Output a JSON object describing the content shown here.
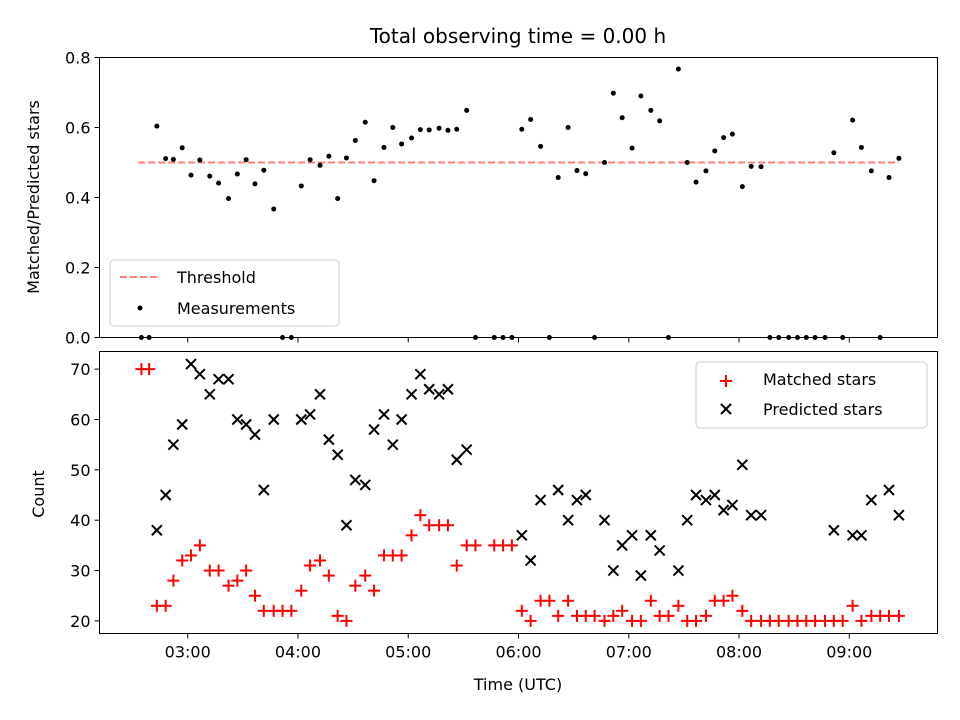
{
  "chart_data": [
    {
      "type": "scatter",
      "title": "Total observing time = 0.00 h",
      "ylabel": "Matched/Predicted stars",
      "xlabel": "",
      "xlim": [
        2.2,
        9.8
      ],
      "ylim": [
        0.0,
        0.8
      ],
      "xticks": [
        3,
        4,
        5,
        6,
        7,
        8,
        9
      ],
      "yticks": [
        0.0,
        0.2,
        0.4,
        0.6,
        0.8
      ],
      "ytick_labels": [
        "0.0",
        "0.2",
        "0.4",
        "0.6",
        "0.8"
      ],
      "legend": {
        "loc": "lower-left",
        "entries": [
          "Threshold",
          "Measurements"
        ]
      },
      "threshold": {
        "name": "Threshold",
        "value": 0.5,
        "x_range": [
          2.55,
          9.45
        ],
        "color": "#ff7f7f",
        "style": "dashed"
      },
      "series": [
        {
          "name": "Measurements",
          "color": "#000000",
          "marker": "dot",
          "points": [
            [
              2.58,
              0.0
            ],
            [
              2.65,
              0.0
            ],
            [
              2.72,
              0.604
            ],
            [
              2.8,
              0.511
            ],
            [
              2.87,
              0.509
            ],
            [
              2.95,
              0.542
            ],
            [
              3.03,
              0.464
            ],
            [
              3.11,
              0.507
            ],
            [
              3.2,
              0.461
            ],
            [
              3.28,
              0.441
            ],
            [
              3.37,
              0.397
            ],
            [
              3.45,
              0.467
            ],
            [
              3.53,
              0.508
            ],
            [
              3.61,
              0.439
            ],
            [
              3.69,
              0.478
            ],
            [
              3.78,
              0.367
            ],
            [
              3.86,
              0.0
            ],
            [
              3.94,
              0.0
            ],
            [
              4.03,
              0.433
            ],
            [
              4.11,
              0.508
            ],
            [
              4.2,
              0.492
            ],
            [
              4.28,
              0.518
            ],
            [
              4.36,
              0.397
            ],
            [
              4.44,
              0.513
            ],
            [
              4.52,
              0.563
            ],
            [
              4.61,
              0.615
            ],
            [
              4.69,
              0.448
            ],
            [
              4.78,
              0.543
            ],
            [
              4.86,
              0.6
            ],
            [
              4.94,
              0.553
            ],
            [
              5.03,
              0.57
            ],
            [
              5.11,
              0.594
            ],
            [
              5.19,
              0.593
            ],
            [
              5.28,
              0.598
            ],
            [
              5.36,
              0.592
            ],
            [
              5.44,
              0.595
            ],
            [
              5.53,
              0.649
            ],
            [
              5.61,
              0.0
            ],
            [
              5.78,
              0.0
            ],
            [
              5.86,
              0.0
            ],
            [
              5.94,
              0.0
            ],
            [
              6.03,
              0.595
            ],
            [
              6.11,
              0.623
            ],
            [
              6.2,
              0.546
            ],
            [
              6.28,
              0.0
            ],
            [
              6.36,
              0.457
            ],
            [
              6.45,
              0.6
            ],
            [
              6.53,
              0.477
            ],
            [
              6.61,
              0.468
            ],
            [
              6.69,
              0.0
            ],
            [
              6.78,
              0.5
            ],
            [
              6.86,
              0.698
            ],
            [
              6.94,
              0.628
            ],
            [
              7.03,
              0.541
            ],
            [
              7.11,
              0.69
            ],
            [
              7.2,
              0.649
            ],
            [
              7.28,
              0.619
            ],
            [
              7.36,
              0.0
            ],
            [
              7.45,
              0.767
            ],
            [
              7.53,
              0.5
            ],
            [
              7.61,
              0.444
            ],
            [
              7.7,
              0.476
            ],
            [
              7.78,
              0.533
            ],
            [
              7.86,
              0.571
            ],
            [
              7.94,
              0.581
            ],
            [
              8.03,
              0.431
            ],
            [
              8.11,
              0.489
            ],
            [
              8.2,
              0.488
            ],
            [
              8.28,
              0.0
            ],
            [
              8.36,
              0.0
            ],
            [
              8.45,
              0.0
            ],
            [
              8.53,
              0.0
            ],
            [
              8.61,
              0.0
            ],
            [
              8.69,
              0.0
            ],
            [
              8.78,
              0.0
            ],
            [
              8.86,
              0.528
            ],
            [
              8.94,
              0.0
            ],
            [
              9.03,
              0.621
            ],
            [
              9.11,
              0.543
            ],
            [
              9.2,
              0.476
            ],
            [
              9.28,
              0.0
            ],
            [
              9.36,
              0.457
            ],
            [
              9.45,
              0.512
            ]
          ]
        }
      ]
    },
    {
      "type": "scatter",
      "title": "",
      "ylabel": "Count",
      "xlabel": "Time (UTC)",
      "xlim": [
        2.2,
        9.8
      ],
      "ylim": [
        17.5,
        73.5
      ],
      "xticks": [
        3,
        4,
        5,
        6,
        7,
        8,
        9
      ],
      "xtick_labels": [
        "03:00",
        "04:00",
        "05:00",
        "06:00",
        "07:00",
        "08:00",
        "09:00"
      ],
      "yticks": [
        20,
        30,
        40,
        50,
        60,
        70
      ],
      "ytick_labels": [
        "20",
        "30",
        "40",
        "50",
        "60",
        "70"
      ],
      "legend": {
        "loc": "upper-right",
        "entries": [
          "Matched stars",
          "Predicted stars"
        ]
      },
      "series": [
        {
          "name": "Matched stars",
          "color": "#ff0000",
          "marker": "plus",
          "points": [
            [
              2.58,
              70
            ],
            [
              2.65,
              70
            ],
            [
              2.72,
              23
            ],
            [
              2.8,
              23
            ],
            [
              2.87,
              28
            ],
            [
              2.95,
              32
            ],
            [
              3.03,
              33
            ],
            [
              3.11,
              35
            ],
            [
              3.2,
              30
            ],
            [
              3.28,
              30
            ],
            [
              3.37,
              27
            ],
            [
              3.45,
              28
            ],
            [
              3.53,
              30
            ],
            [
              3.61,
              25
            ],
            [
              3.69,
              22
            ],
            [
              3.78,
              22
            ],
            [
              3.86,
              22
            ],
            [
              3.94,
              22
            ],
            [
              4.03,
              26
            ],
            [
              4.11,
              31
            ],
            [
              4.2,
              32
            ],
            [
              4.28,
              29
            ],
            [
              4.36,
              21
            ],
            [
              4.44,
              20
            ],
            [
              4.52,
              27
            ],
            [
              4.61,
              29
            ],
            [
              4.69,
              26
            ],
            [
              4.78,
              33
            ],
            [
              4.86,
              33
            ],
            [
              4.94,
              33
            ],
            [
              5.03,
              37
            ],
            [
              5.11,
              41
            ],
            [
              5.19,
              39
            ],
            [
              5.28,
              39
            ],
            [
              5.36,
              39
            ],
            [
              5.44,
              31
            ],
            [
              5.53,
              35
            ],
            [
              5.61,
              35
            ],
            [
              5.78,
              35
            ],
            [
              5.86,
              35
            ],
            [
              5.94,
              35
            ],
            [
              6.03,
              22
            ],
            [
              6.11,
              20
            ],
            [
              6.2,
              24
            ],
            [
              6.28,
              24
            ],
            [
              6.36,
              21
            ],
            [
              6.45,
              24
            ],
            [
              6.53,
              21
            ],
            [
              6.61,
              21
            ],
            [
              6.69,
              21
            ],
            [
              6.78,
              20
            ],
            [
              6.86,
              21
            ],
            [
              6.94,
              22
            ],
            [
              7.03,
              20
            ],
            [
              7.11,
              20
            ],
            [
              7.2,
              24
            ],
            [
              7.28,
              21
            ],
            [
              7.36,
              21
            ],
            [
              7.45,
              23
            ],
            [
              7.53,
              20
            ],
            [
              7.61,
              20
            ],
            [
              7.7,
              21
            ],
            [
              7.78,
              24
            ],
            [
              7.86,
              24
            ],
            [
              7.94,
              25
            ],
            [
              8.03,
              22
            ],
            [
              8.11,
              20
            ],
            [
              8.2,
              20
            ],
            [
              8.28,
              20
            ],
            [
              8.36,
              20
            ],
            [
              8.45,
              20
            ],
            [
              8.53,
              20
            ],
            [
              8.61,
              20
            ],
            [
              8.69,
              20
            ],
            [
              8.78,
              20
            ],
            [
              8.86,
              20
            ],
            [
              8.94,
              20
            ],
            [
              9.03,
              23
            ],
            [
              9.11,
              20
            ],
            [
              9.2,
              21
            ],
            [
              9.28,
              21
            ],
            [
              9.36,
              21
            ],
            [
              9.45,
              21
            ]
          ]
        },
        {
          "name": "Predicted stars",
          "color": "#000000",
          "marker": "x",
          "points": [
            [
              2.72,
              38
            ],
            [
              2.8,
              45
            ],
            [
              2.87,
              55
            ],
            [
              2.95,
              59
            ],
            [
              3.03,
              71
            ],
            [
              3.11,
              69
            ],
            [
              3.2,
              65
            ],
            [
              3.28,
              68
            ],
            [
              3.37,
              68
            ],
            [
              3.45,
              60
            ],
            [
              3.53,
              59
            ],
            [
              3.61,
              57
            ],
            [
              3.69,
              46
            ],
            [
              3.78,
              60
            ],
            [
              4.03,
              60
            ],
            [
              4.11,
              61
            ],
            [
              4.2,
              65
            ],
            [
              4.28,
              56
            ],
            [
              4.36,
              53
            ],
            [
              4.44,
              39
            ],
            [
              4.52,
              48
            ],
            [
              4.61,
              47
            ],
            [
              4.69,
              58
            ],
            [
              4.78,
              61
            ],
            [
              4.86,
              55
            ],
            [
              4.94,
              60
            ],
            [
              5.03,
              65
            ],
            [
              5.11,
              69
            ],
            [
              5.19,
              66
            ],
            [
              5.28,
              65
            ],
            [
              5.36,
              66
            ],
            [
              5.44,
              52
            ],
            [
              5.53,
              54
            ],
            [
              6.03,
              37
            ],
            [
              6.11,
              32
            ],
            [
              6.2,
              44
            ],
            [
              6.36,
              46
            ],
            [
              6.45,
              40
            ],
            [
              6.53,
              44
            ],
            [
              6.61,
              45
            ],
            [
              6.78,
              40
            ],
            [
              6.86,
              30
            ],
            [
              6.94,
              35
            ],
            [
              7.03,
              37
            ],
            [
              7.11,
              29
            ],
            [
              7.2,
              37
            ],
            [
              7.28,
              34
            ],
            [
              7.45,
              30
            ],
            [
              7.53,
              40
            ],
            [
              7.61,
              45
            ],
            [
              7.7,
              44
            ],
            [
              7.78,
              45
            ],
            [
              7.86,
              42
            ],
            [
              7.94,
              43
            ],
            [
              8.03,
              51
            ],
            [
              8.11,
              41
            ],
            [
              8.2,
              41
            ],
            [
              8.86,
              38
            ],
            [
              9.03,
              37
            ],
            [
              9.11,
              37
            ],
            [
              9.2,
              44
            ],
            [
              9.36,
              46
            ],
            [
              9.45,
              41
            ]
          ]
        }
      ]
    }
  ]
}
